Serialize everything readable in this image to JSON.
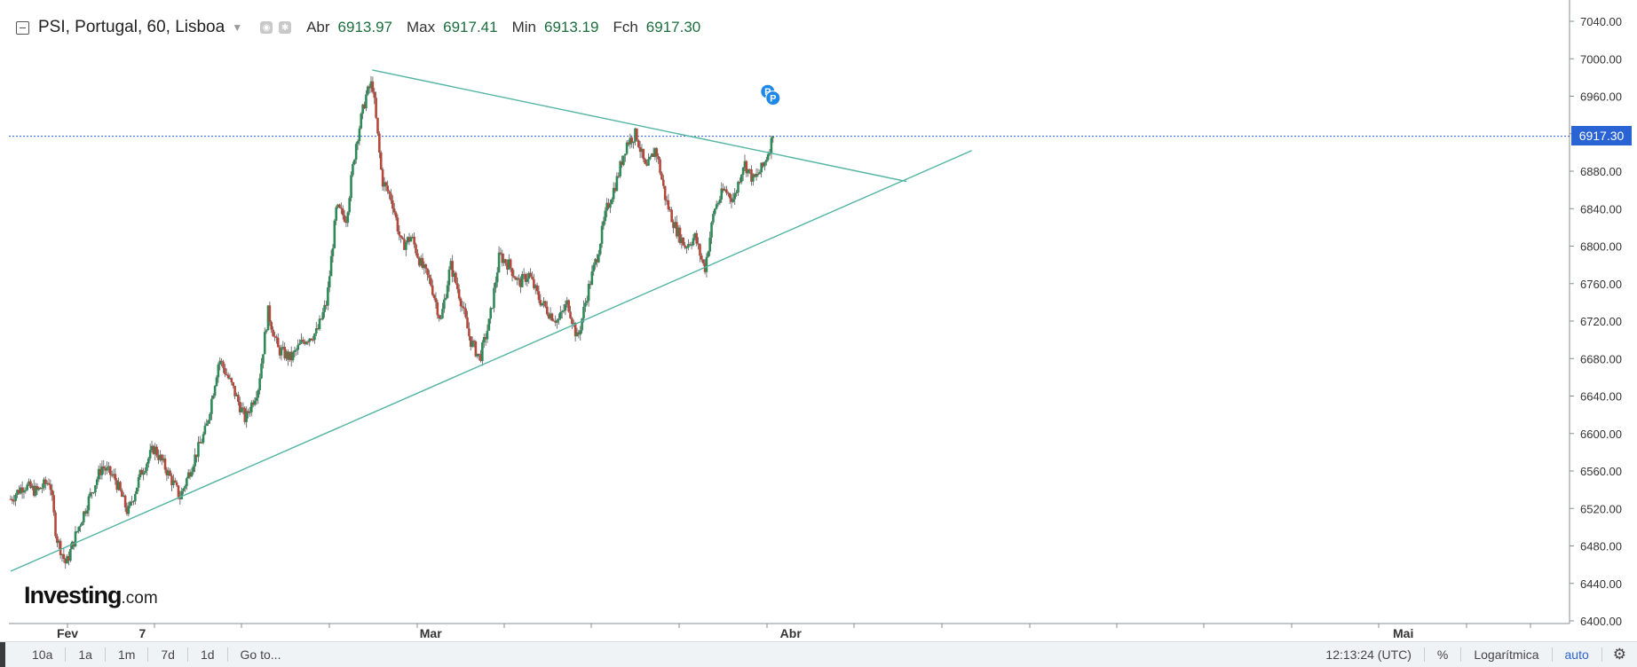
{
  "legend": {
    "symbol": "PSI, Portugal, 60, Lisboa",
    "open_label": "Abr",
    "open_value": "6913.97",
    "high_label": "Max",
    "high_value": "6917.41",
    "low_label": "Min",
    "low_value": "6913.19",
    "close_label": "Fch",
    "close_value": "6917.30"
  },
  "price_tag": "6917.30",
  "logo": {
    "main": "Investing",
    "suffix": ".com"
  },
  "toolbar": {
    "ranges": [
      "10a",
      "1a",
      "1m",
      "7d",
      "1d"
    ],
    "goto": "Go to...",
    "time": "12:13:24 (UTC)",
    "percent": "%",
    "log": "Logarítmica",
    "auto": "auto"
  },
  "colors": {
    "up": "#2e8b57",
    "down": "#b5473b",
    "trendline": "#52b4a2",
    "price_line": "#2a63d4",
    "axis_text": "#333333"
  },
  "chart_data": {
    "type": "candlestick",
    "title": "PSI, Portugal, 60, Lisboa",
    "ylim": [
      6400,
      7040
    ],
    "y_ticks": [
      "7040.00",
      "7000.00",
      "6960.00",
      "6920.00",
      "6880.00",
      "6840.00",
      "6800.00",
      "6760.00",
      "6720.00",
      "6680.00",
      "6640.00",
      "6600.00",
      "6560.00",
      "6520.00",
      "6480.00",
      "6440.00",
      "6400.00"
    ],
    "x_ticks": [
      {
        "label": "Fev",
        "t": 0.0
      },
      {
        "label": "7",
        "t": 0.046
      },
      {
        "label": "Mar",
        "t": 0.223
      },
      {
        "label": "Abr",
        "t": 0.444
      },
      {
        "label": "Mai",
        "t": 0.82
      }
    ],
    "current_price": 6917.3,
    "close_path": [
      [
        0.0,
        6530
      ],
      [
        0.008,
        6545
      ],
      [
        0.016,
        6538
      ],
      [
        0.024,
        6550
      ],
      [
        0.028,
        6490
      ],
      [
        0.034,
        6460
      ],
      [
        0.04,
        6492
      ],
      [
        0.048,
        6530
      ],
      [
        0.056,
        6565
      ],
      [
        0.064,
        6552
      ],
      [
        0.072,
        6515
      ],
      [
        0.08,
        6558
      ],
      [
        0.088,
        6585
      ],
      [
        0.096,
        6560
      ],
      [
        0.104,
        6532
      ],
      [
        0.112,
        6570
      ],
      [
        0.12,
        6605
      ],
      [
        0.128,
        6680
      ],
      [
        0.136,
        6650
      ],
      [
        0.144,
        6615
      ],
      [
        0.152,
        6650
      ],
      [
        0.158,
        6730
      ],
      [
        0.164,
        6690
      ],
      [
        0.172,
        6680
      ],
      [
        0.18,
        6700
      ],
      [
        0.188,
        6708
      ],
      [
        0.194,
        6740
      ],
      [
        0.2,
        6840
      ],
      [
        0.206,
        6830
      ],
      [
        0.212,
        6910
      ],
      [
        0.218,
        6960
      ],
      [
        0.222,
        6975
      ],
      [
        0.228,
        6870
      ],
      [
        0.234,
        6850
      ],
      [
        0.24,
        6800
      ],
      [
        0.246,
        6810
      ],
      [
        0.252,
        6780
      ],
      [
        0.258,
        6760
      ],
      [
        0.264,
        6720
      ],
      [
        0.27,
        6780
      ],
      [
        0.276,
        6745
      ],
      [
        0.282,
        6700
      ],
      [
        0.288,
        6680
      ],
      [
        0.294,
        6720
      ],
      [
        0.3,
        6790
      ],
      [
        0.306,
        6780
      ],
      [
        0.312,
        6760
      ],
      [
        0.318,
        6770
      ],
      [
        0.324,
        6745
      ],
      [
        0.33,
        6730
      ],
      [
        0.336,
        6720
      ],
      [
        0.342,
        6740
      ],
      [
        0.348,
        6700
      ],
      [
        0.354,
        6750
      ],
      [
        0.36,
        6790
      ],
      [
        0.366,
        6840
      ],
      [
        0.372,
        6870
      ],
      [
        0.378,
        6910
      ],
      [
        0.384,
        6920
      ],
      [
        0.39,
        6880
      ],
      [
        0.396,
        6905
      ],
      [
        0.402,
        6850
      ],
      [
        0.408,
        6820
      ],
      [
        0.414,
        6800
      ],
      [
        0.42,
        6810
      ],
      [
        0.426,
        6775
      ],
      [
        0.432,
        6840
      ],
      [
        0.438,
        6860
      ],
      [
        0.444,
        6850
      ],
      [
        0.45,
        6890
      ],
      [
        0.456,
        6870
      ],
      [
        0.462,
        6885
      ],
      [
        0.468,
        6917
      ]
    ],
    "trendlines": [
      {
        "from": [
          0.222,
          6988
        ],
        "to": [
          0.55,
          6869
        ],
        "name": "resistance"
      },
      {
        "from": [
          0.0,
          6453
        ],
        "to": [
          0.59,
          6902
        ],
        "name": "support"
      }
    ],
    "grid": false,
    "scale": "logarithmic"
  }
}
